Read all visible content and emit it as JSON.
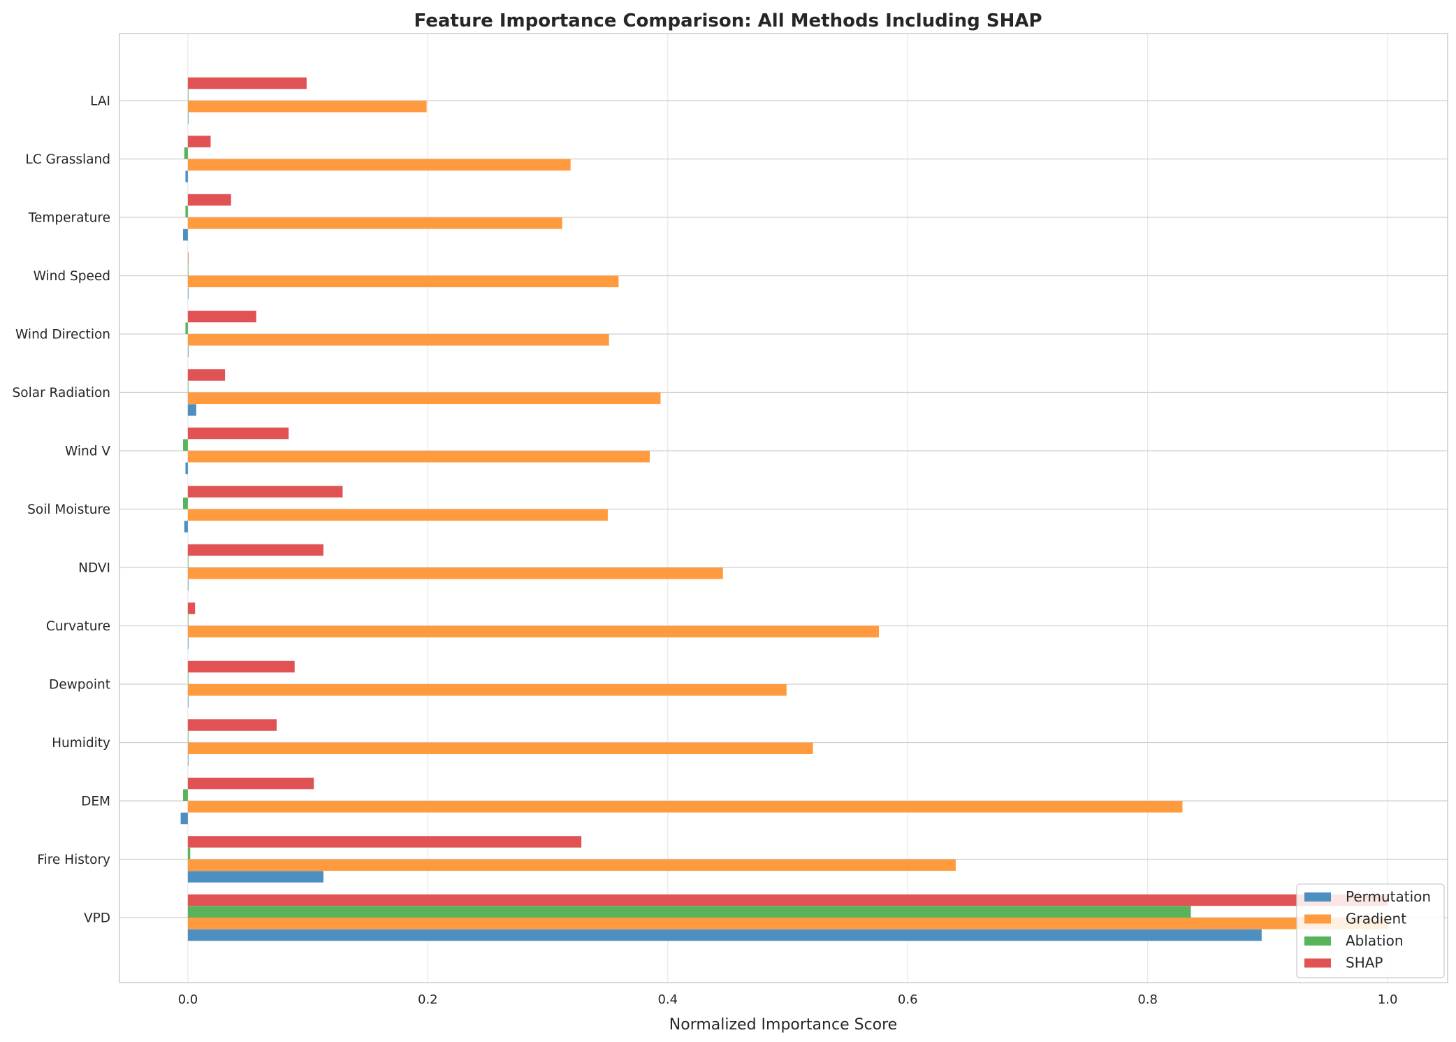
{
  "chart_data": {
    "type": "bar",
    "orientation": "horizontal",
    "title": "Feature Importance Comparison: All Methods Including SHAP",
    "xlabel": "Normalized Importance Score",
    "ylabel": "",
    "xlim": [
      -0.057,
      1.05
    ],
    "xticks": [
      0.0,
      0.2,
      0.4,
      0.6,
      0.8,
      1.0
    ],
    "xtick_labels": [
      "0.0",
      "0.2",
      "0.4",
      "0.6",
      "0.8",
      "1.0"
    ],
    "grid": true,
    "legend_position": "lower-right",
    "categories": [
      "VPD",
      "Fire History",
      "DEM",
      "Humidity",
      "Dewpoint",
      "Curvature",
      "NDVI",
      "Soil Moisture",
      "Wind V",
      "Solar Radiation",
      "Wind Direction",
      "Wind Speed",
      "Temperature",
      "LC Grassland",
      "LAI"
    ],
    "series": [
      {
        "name": "Permutation",
        "color": "#4c8fc0",
        "values": [
          0.895,
          0.113,
          -0.006,
          0.0,
          0.0,
          0.0,
          0.0,
          -0.003,
          -0.002,
          0.007,
          0.0,
          0.0,
          -0.004,
          -0.002,
          0.0
        ]
      },
      {
        "name": "Gradient",
        "color": "#ff9a3f",
        "values": [
          1.0,
          0.64,
          0.829,
          0.521,
          0.499,
          0.576,
          0.446,
          0.35,
          0.385,
          0.394,
          0.351,
          0.359,
          0.312,
          0.319,
          0.199
        ]
      },
      {
        "name": "Ablation",
        "color": "#58b35b",
        "values": [
          0.836,
          0.002,
          -0.004,
          0.0,
          0.0,
          0.0,
          0.0,
          -0.004,
          -0.004,
          0.0,
          -0.002,
          0.0,
          -0.002,
          -0.003,
          0.0
        ]
      },
      {
        "name": "SHAP",
        "color": "#e05254",
        "values": [
          1.0,
          0.328,
          0.105,
          0.074,
          0.089,
          0.006,
          0.113,
          0.129,
          0.084,
          0.031,
          0.057,
          0.0,
          0.036,
          0.019,
          0.099
        ]
      }
    ]
  }
}
